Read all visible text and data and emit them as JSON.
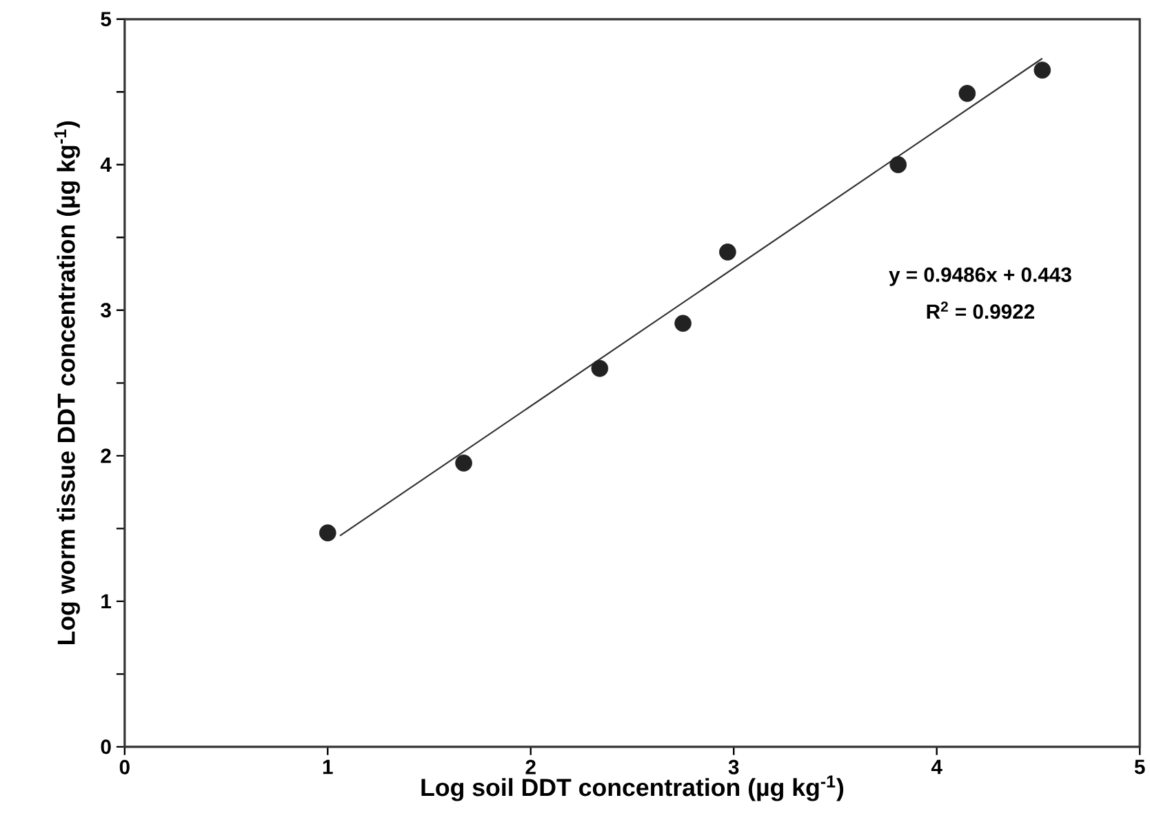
{
  "chart_data": {
    "type": "scatter",
    "xlabel": "Log soil DDT concentration (µg kg$^{-1}$)",
    "ylabel": "Log worm tissue DDT concentration (µg kg$^{-1}$)",
    "xlim": [
      0,
      5
    ],
    "ylim": [
      0,
      5
    ],
    "xticks": [
      0,
      1,
      2,
      3,
      4,
      5
    ],
    "yticks": [
      0,
      {
        "value": 0.5,
        "label": null
      },
      1,
      {
        "value": 1.5,
        "label": null
      },
      2,
      {
        "value": 2.5,
        "label": null
      },
      3,
      {
        "value": 3.5,
        "label": null
      },
      4,
      {
        "value": 4.5,
        "label": null
      },
      5
    ],
    "grid": false,
    "series": [
      {
        "marker": "circle",
        "color": "#222222",
        "x": [
          1.0,
          1.67,
          2.34,
          2.75,
          2.97,
          3.81,
          4.15,
          4.52
        ],
        "values": [
          1.47,
          1.95,
          2.6,
          2.91,
          3.4,
          4.0,
          4.49,
          4.65
        ]
      },
      {
        "type": "line",
        "marker": "none",
        "line_style": "solid",
        "color": "#333333",
        "x": [
          1.06,
          4.52
        ],
        "values": [
          1.45,
          4.73
        ]
      }
    ],
    "annotations": [
      "y = 0.9486x + 0.443",
      "R$^{2}$ = 0.9922"
    ]
  }
}
